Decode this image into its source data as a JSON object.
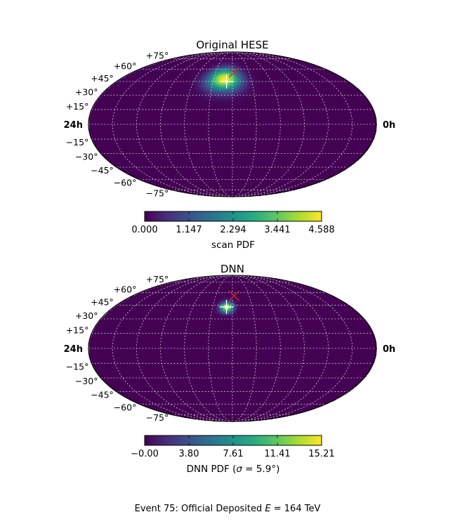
{
  "figure": {
    "caption": "Event 75: Official Deposited E = 164 TeV",
    "caption_parts": {
      "prefix": "Event 75:  Official Deposited ",
      "var": "E",
      "eq": " = 164 ",
      "unit": "TeV"
    }
  },
  "chart_data": [
    {
      "type": "heatmap",
      "projection": "mollweide",
      "title": "Original HESE",
      "ra_labels": {
        "left": "24h",
        "right": "0h"
      },
      "dec_labels": [
        "+75°",
        "+60°",
        "+45°",
        "+30°",
        "+15°",
        "−15°",
        "−30°",
        "−45°",
        "−60°",
        "−75°"
      ],
      "grid": true,
      "colormap": "viridis",
      "colorbar": {
        "label": "scan PDF",
        "min": 0.0,
        "max": 4.588,
        "ticks": [
          "0.000",
          "1.147",
          "2.294",
          "3.441",
          "4.588"
        ]
      },
      "hotspot": {
        "ra_h": 12.9,
        "dec_deg": 48,
        "spread_ra_deg": 12,
        "spread_dec_deg": 9,
        "peak": 4.588
      },
      "markers": [
        {
          "type": "x",
          "color": "#d62728",
          "ra_h": 11.8,
          "dec_deg": 56
        },
        {
          "type": "plus",
          "color": "#ffffff",
          "ra_h": 12.6,
          "dec_deg": 45
        }
      ]
    },
    {
      "type": "heatmap",
      "projection": "mollweide",
      "title": "DNN",
      "ra_labels": {
        "left": "24h",
        "right": "0h"
      },
      "dec_labels": [
        "+75°",
        "+60°",
        "+45°",
        "+30°",
        "+15°",
        "−15°",
        "−30°",
        "−45°",
        "−60°",
        "−75°"
      ],
      "grid": true,
      "colormap": "viridis",
      "colorbar": {
        "label": "DNN PDF (σ = 5.9°)",
        "min": 0.0,
        "max": 15.21,
        "ticks": [
          "−0.00",
          "3.80",
          "7.61",
          "11.41",
          "15.21"
        ],
        "label_parts": {
          "prefix": "DNN PDF (",
          "var": "σ",
          "eq": " = 5.9°)"
        }
      },
      "hotspot": {
        "ra_h": 12.6,
        "dec_deg": 43,
        "spread_ra_deg": 5,
        "spread_dec_deg": 4,
        "peak": 15.21
      },
      "markers": [
        {
          "type": "x",
          "color": "#d62728",
          "ra_h": 11.8,
          "dec_deg": 56
        },
        {
          "type": "plus",
          "color": "#ffffff",
          "ra_h": 12.6,
          "dec_deg": 43
        }
      ]
    }
  ]
}
